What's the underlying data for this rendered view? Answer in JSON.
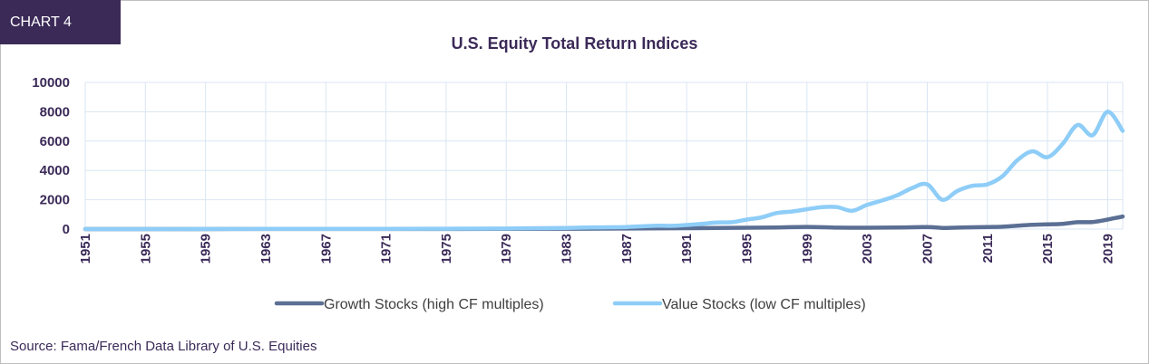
{
  "badge": "CHART 4",
  "source": "Source: Fama/French Data Library of U.S. Equities",
  "chart_data": {
    "type": "line",
    "title": "U.S. Equity Total Return Indices",
    "xlabel": "",
    "ylabel": "",
    "ylim": [
      0,
      10000
    ],
    "yticks": [
      0,
      2000,
      4000,
      6000,
      8000,
      10000
    ],
    "xlim": [
      1951,
      2020
    ],
    "xticks": [
      1951,
      1955,
      1959,
      1963,
      1967,
      1971,
      1975,
      1979,
      1983,
      1987,
      1991,
      1995,
      1999,
      2003,
      2007,
      2011,
      2015,
      2019
    ],
    "grid": true,
    "legend_position": "bottom",
    "series": [
      {
        "name": "Growth Stocks (high CF multiples)",
        "color": "#5b6f94",
        "points": [
          [
            1951,
            1
          ],
          [
            1955,
            2
          ],
          [
            1959,
            3
          ],
          [
            1963,
            4
          ],
          [
            1967,
            6
          ],
          [
            1971,
            8
          ],
          [
            1975,
            7
          ],
          [
            1979,
            12
          ],
          [
            1983,
            25
          ],
          [
            1987,
            40
          ],
          [
            1991,
            60
          ],
          [
            1993,
            75
          ],
          [
            1995,
            90
          ],
          [
            1997,
            110
          ],
          [
            1999,
            150
          ],
          [
            2001,
            100
          ],
          [
            2003,
            90
          ],
          [
            2005,
            110
          ],
          [
            2007,
            140
          ],
          [
            2008,
            80
          ],
          [
            2009,
            100
          ],
          [
            2011,
            140
          ],
          [
            2012,
            160
          ],
          [
            2013,
            230
          ],
          [
            2014,
            290
          ],
          [
            2015,
            320
          ],
          [
            2016,
            360
          ],
          [
            2017,
            470
          ],
          [
            2018,
            480
          ],
          [
            2019,
            650
          ],
          [
            2020,
            860
          ]
        ]
      },
      {
        "name": "Value Stocks (low CF multiples)",
        "color": "#8ecdf7",
        "points": [
          [
            1951,
            1
          ],
          [
            1955,
            3
          ],
          [
            1959,
            5
          ],
          [
            1963,
            10
          ],
          [
            1967,
            15
          ],
          [
            1971,
            20
          ],
          [
            1975,
            25
          ],
          [
            1979,
            40
          ],
          [
            1983,
            80
          ],
          [
            1985,
            120
          ],
          [
            1987,
            140
          ],
          [
            1989,
            230
          ],
          [
            1990,
            220
          ],
          [
            1991,
            280
          ],
          [
            1992,
            350
          ],
          [
            1993,
            450
          ],
          [
            1994,
            470
          ],
          [
            1995,
            650
          ],
          [
            1996,
            800
          ],
          [
            1997,
            1100
          ],
          [
            1998,
            1200
          ],
          [
            1999,
            1350
          ],
          [
            2000,
            1500
          ],
          [
            2001,
            1500
          ],
          [
            2002,
            1250
          ],
          [
            2003,
            1650
          ],
          [
            2004,
            1950
          ],
          [
            2005,
            2300
          ],
          [
            2006,
            2800
          ],
          [
            2007,
            3050
          ],
          [
            2008,
            2000
          ],
          [
            2009,
            2600
          ],
          [
            2010,
            2950
          ],
          [
            2011,
            3050
          ],
          [
            2012,
            3600
          ],
          [
            2013,
            4700
          ],
          [
            2014,
            5300
          ],
          [
            2015,
            4900
          ],
          [
            2016,
            5800
          ],
          [
            2017,
            7100
          ],
          [
            2018,
            6400
          ],
          [
            2019,
            8000
          ],
          [
            2020,
            6700
          ]
        ]
      }
    ]
  }
}
